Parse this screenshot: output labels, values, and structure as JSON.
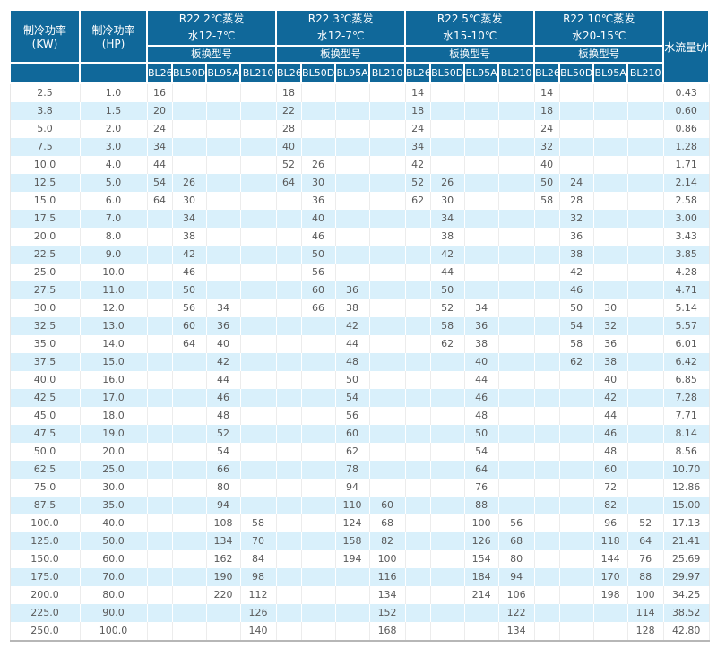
{
  "labels": {
    "kw": "制冷功率(KW)",
    "hp": "制冷功率(HP)",
    "model_type": "板换型号",
    "flow": "水流量t/h"
  },
  "groups": [
    {
      "line1": "R22 2℃蒸发",
      "line2": "水12-7℃"
    },
    {
      "line1": "R22 3℃蒸发",
      "line2": "水12-7℃"
    },
    {
      "line1": "R22 5℃蒸发",
      "line2": "水15-10℃"
    },
    {
      "line1": "R22 10℃蒸发",
      "line2": "水20-15℃"
    }
  ],
  "models": [
    "BL26",
    "BL50D",
    "BL95A",
    "BL210"
  ],
  "colors": {
    "header_bg": "#10689a",
    "alt_row_bg": "#d9f0fb",
    "body_text": "#595959",
    "header_text": "#ffffff"
  },
  "rows": [
    {
      "kw": "2.5",
      "hp": "1.0",
      "cells": [
        "16",
        "",
        "",
        "",
        "18",
        "",
        "",
        "",
        "14",
        "",
        "",
        "",
        "14",
        "",
        "",
        ""
      ],
      "flow": "0.43"
    },
    {
      "kw": "3.8",
      "hp": "1.5",
      "cells": [
        "20",
        "",
        "",
        "",
        "22",
        "",
        "",
        "",
        "18",
        "",
        "",
        "",
        "18",
        "",
        "",
        ""
      ],
      "flow": "0.60"
    },
    {
      "kw": "5.0",
      "hp": "2.0",
      "cells": [
        "24",
        "",
        "",
        "",
        "28",
        "",
        "",
        "",
        "24",
        "",
        "",
        "",
        "24",
        "",
        "",
        ""
      ],
      "flow": "0.86"
    },
    {
      "kw": "7.5",
      "hp": "3.0",
      "cells": [
        "34",
        "",
        "",
        "",
        "40",
        "",
        "",
        "",
        "34",
        "",
        "",
        "",
        "32",
        "",
        "",
        ""
      ],
      "flow": "1.28"
    },
    {
      "kw": "10.0",
      "hp": "4.0",
      "cells": [
        "44",
        "",
        "",
        "",
        "52",
        "26",
        "",
        "",
        "42",
        "",
        "",
        "",
        "40",
        "",
        "",
        ""
      ],
      "flow": "1.71"
    },
    {
      "kw": "12.5",
      "hp": "5.0",
      "cells": [
        "54",
        "26",
        "",
        "",
        "64",
        "30",
        "",
        "",
        "52",
        "26",
        "",
        "",
        "50",
        "24",
        "",
        ""
      ],
      "flow": "2.14"
    },
    {
      "kw": "15.0",
      "hp": "6.0",
      "cells": [
        "64",
        "30",
        "",
        "",
        "",
        "36",
        "",
        "",
        "62",
        "30",
        "",
        "",
        "58",
        "28",
        "",
        ""
      ],
      "flow": "2.58"
    },
    {
      "kw": "17.5",
      "hp": "7.0",
      "cells": [
        "",
        "34",
        "",
        "",
        "",
        "40",
        "",
        "",
        "",
        "34",
        "",
        "",
        "",
        "32",
        "",
        ""
      ],
      "flow": "3.00"
    },
    {
      "kw": "20.0",
      "hp": "8.0",
      "cells": [
        "",
        "38",
        "",
        "",
        "",
        "46",
        "",
        "",
        "",
        "38",
        "",
        "",
        "",
        "36",
        "",
        ""
      ],
      "flow": "3.43"
    },
    {
      "kw": "22.5",
      "hp": "9.0",
      "cells": [
        "",
        "42",
        "",
        "",
        "",
        "50",
        "",
        "",
        "",
        "42",
        "",
        "",
        "",
        "38",
        "",
        ""
      ],
      "flow": "3.85"
    },
    {
      "kw": "25.0",
      "hp": "10.0",
      "cells": [
        "",
        "46",
        "",
        "",
        "",
        "56",
        "",
        "",
        "",
        "44",
        "",
        "",
        "",
        "42",
        "",
        ""
      ],
      "flow": "4.28"
    },
    {
      "kw": "27.5",
      "hp": "11.0",
      "cells": [
        "",
        "50",
        "",
        "",
        "",
        "60",
        "36",
        "",
        "",
        "50",
        "",
        "",
        "",
        "46",
        "",
        ""
      ],
      "flow": "4.71"
    },
    {
      "kw": "30.0",
      "hp": "12.0",
      "cells": [
        "",
        "56",
        "34",
        "",
        "",
        "66",
        "38",
        "",
        "",
        "52",
        "34",
        "",
        "",
        "50",
        "30",
        ""
      ],
      "flow": "5.14"
    },
    {
      "kw": "32.5",
      "hp": "13.0",
      "cells": [
        "",
        "60",
        "36",
        "",
        "",
        "",
        "42",
        "",
        "",
        "58",
        "36",
        "",
        "",
        "54",
        "32",
        ""
      ],
      "flow": "5.57"
    },
    {
      "kw": "35.0",
      "hp": "14.0",
      "cells": [
        "",
        "64",
        "40",
        "",
        "",
        "",
        "44",
        "",
        "",
        "62",
        "38",
        "",
        "",
        "58",
        "36",
        ""
      ],
      "flow": "6.01"
    },
    {
      "kw": "37.5",
      "hp": "15.0",
      "cells": [
        "",
        "",
        "42",
        "",
        "",
        "",
        "48",
        "",
        "",
        "",
        "40",
        "",
        "",
        "62",
        "38",
        ""
      ],
      "flow": "6.42"
    },
    {
      "kw": "40.0",
      "hp": "16.0",
      "cells": [
        "",
        "",
        "44",
        "",
        "",
        "",
        "50",
        "",
        "",
        "",
        "44",
        "",
        "",
        "",
        "40",
        ""
      ],
      "flow": "6.85"
    },
    {
      "kw": "42.5",
      "hp": "17.0",
      "cells": [
        "",
        "",
        "46",
        "",
        "",
        "",
        "54",
        "",
        "",
        "",
        "46",
        "",
        "",
        "",
        "42",
        ""
      ],
      "flow": "7.28"
    },
    {
      "kw": "45.0",
      "hp": "18.0",
      "cells": [
        "",
        "",
        "48",
        "",
        "",
        "",
        "56",
        "",
        "",
        "",
        "48",
        "",
        "",
        "",
        "44",
        ""
      ],
      "flow": "7.71"
    },
    {
      "kw": "47.5",
      "hp": "19.0",
      "cells": [
        "",
        "",
        "52",
        "",
        "",
        "",
        "60",
        "",
        "",
        "",
        "50",
        "",
        "",
        "",
        "46",
        ""
      ],
      "flow": "8.14"
    },
    {
      "kw": "50.0",
      "hp": "20.0",
      "cells": [
        "",
        "",
        "54",
        "",
        "",
        "",
        "62",
        "",
        "",
        "",
        "54",
        "",
        "",
        "",
        "48",
        ""
      ],
      "flow": "8.56"
    },
    {
      "kw": "62.5",
      "hp": "25.0",
      "cells": [
        "",
        "",
        "66",
        "",
        "",
        "",
        "78",
        "",
        "",
        "",
        "64",
        "",
        "",
        "",
        "60",
        ""
      ],
      "flow": "10.70"
    },
    {
      "kw": "75.0",
      "hp": "30.0",
      "cells": [
        "",
        "",
        "80",
        "",
        "",
        "",
        "94",
        "",
        "",
        "",
        "76",
        "",
        "",
        "",
        "72",
        ""
      ],
      "flow": "12.86"
    },
    {
      "kw": "87.5",
      "hp": "35.0",
      "cells": [
        "",
        "",
        "94",
        "",
        "",
        "",
        "110",
        "60",
        "",
        "",
        "88",
        "",
        "",
        "",
        "82",
        ""
      ],
      "flow": "15.00"
    },
    {
      "kw": "100.0",
      "hp": "40.0",
      "cells": [
        "",
        "",
        "108",
        "58",
        "",
        "",
        "124",
        "68",
        "",
        "",
        "100",
        "56",
        "",
        "",
        "96",
        "52"
      ],
      "flow": "17.13"
    },
    {
      "kw": "125.0",
      "hp": "50.0",
      "cells": [
        "",
        "",
        "134",
        "70",
        "",
        "",
        "158",
        "82",
        "",
        "",
        "126",
        "68",
        "",
        "",
        "118",
        "64"
      ],
      "flow": "21.41"
    },
    {
      "kw": "150.0",
      "hp": "60.0",
      "cells": [
        "",
        "",
        "162",
        "84",
        "",
        "",
        "194",
        "100",
        "",
        "",
        "154",
        "80",
        "",
        "",
        "144",
        "76"
      ],
      "flow": "25.69"
    },
    {
      "kw": "175.0",
      "hp": "70.0",
      "cells": [
        "",
        "",
        "190",
        "98",
        "",
        "",
        "",
        "116",
        "",
        "",
        "184",
        "94",
        "",
        "",
        "170",
        "88"
      ],
      "flow": "29.97"
    },
    {
      "kw": "200.0",
      "hp": "80.0",
      "cells": [
        "",
        "",
        "220",
        "112",
        "",
        "",
        "",
        "134",
        "",
        "",
        "214",
        "106",
        "",
        "",
        "198",
        "100"
      ],
      "flow": "34.25"
    },
    {
      "kw": "225.0",
      "hp": "90.0",
      "cells": [
        "",
        "",
        "",
        "126",
        "",
        "",
        "",
        "152",
        "",
        "",
        "",
        "122",
        "",
        "",
        "",
        "114"
      ],
      "flow": "38.52"
    },
    {
      "kw": "250.0",
      "hp": "100.0",
      "cells": [
        "",
        "",
        "",
        "140",
        "",
        "",
        "",
        "168",
        "",
        "",
        "",
        "134",
        "",
        "",
        "",
        "128"
      ],
      "flow": "42.80"
    }
  ]
}
